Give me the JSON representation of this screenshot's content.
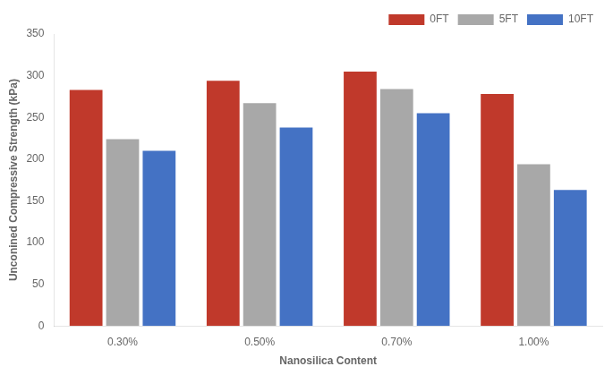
{
  "chart_data": {
    "type": "bar",
    "categories": [
      "0.30%",
      "0.50%",
      "0.70%",
      "1.00%"
    ],
    "series": [
      {
        "name": "0FT",
        "color": "#C0392B",
        "values": [
          283,
          294,
          305,
          278
        ]
      },
      {
        "name": "5FT",
        "color": "#A8A8A8",
        "values": [
          224,
          267,
          284,
          194
        ]
      },
      {
        "name": "10FT",
        "color": "#4472C4",
        "values": [
          210,
          238,
          255,
          163
        ]
      }
    ],
    "xlabel": "Nanosilica Content",
    "ylabel": "Unconined Compressive Strength (kPa)",
    "ylim": [
      0,
      350
    ],
    "yticks": [
      0,
      50,
      100,
      150,
      200,
      250,
      300,
      350
    ],
    "grid": false,
    "legend": "upper right"
  }
}
